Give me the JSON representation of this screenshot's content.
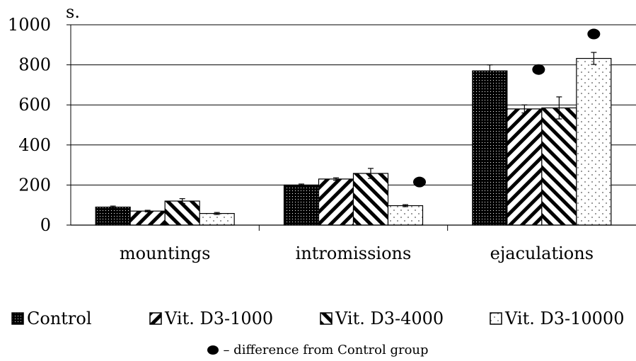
{
  "chart_data": {
    "type": "bar",
    "title": "",
    "xlabel": "",
    "ylabel": "s.",
    "ylim": [
      0,
      1000
    ],
    "yticks": [
      0,
      200,
      400,
      600,
      800,
      1000
    ],
    "grid": true,
    "legend_position": "bottom",
    "categories": [
      "mountings",
      "intromissions",
      "ejaculations"
    ],
    "series": [
      {
        "name": "Control",
        "values": [
          90,
          200,
          770
        ],
        "errors": [
          5,
          5,
          30
        ]
      },
      {
        "name": "Vit. D3-1000",
        "values": [
          70,
          230,
          580
        ],
        "errors": [
          4,
          6,
          20
        ]
      },
      {
        "name": "Vit. D3-4000",
        "values": [
          120,
          258,
          585
        ],
        "errors": [
          12,
          25,
          55
        ]
      },
      {
        "name": "Vit. D3-10000",
        "values": [
          58,
          97,
          832
        ],
        "errors": [
          5,
          5,
          30
        ]
      }
    ],
    "markers": [
      {
        "category": "intromissions",
        "series": "Vit. D3-10000"
      },
      {
        "category": "ejaculations",
        "series": "Vit. D3-1000"
      },
      {
        "category": "ejaculations",
        "series": "Vit. D3-10000"
      }
    ],
    "note": "– difference from Control group"
  }
}
